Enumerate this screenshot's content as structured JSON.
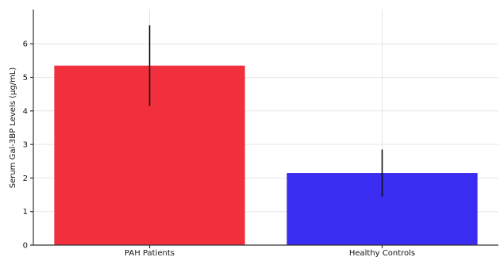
{
  "chart_data": {
    "type": "bar",
    "categories": [
      "PAH Patients",
      "Healthy Controls"
    ],
    "values": [
      5.35,
      2.15
    ],
    "errors": [
      1.2,
      0.7
    ],
    "colors": [
      "#f2303d",
      "#3a2cf0"
    ],
    "title": "",
    "xlabel": "",
    "ylabel": "Serum Gal-3BP Levels (µg/mL)",
    "ylim": [
      0,
      7
    ],
    "yticks": [
      0,
      1,
      2,
      3,
      4,
      5,
      6
    ],
    "grid": true
  }
}
